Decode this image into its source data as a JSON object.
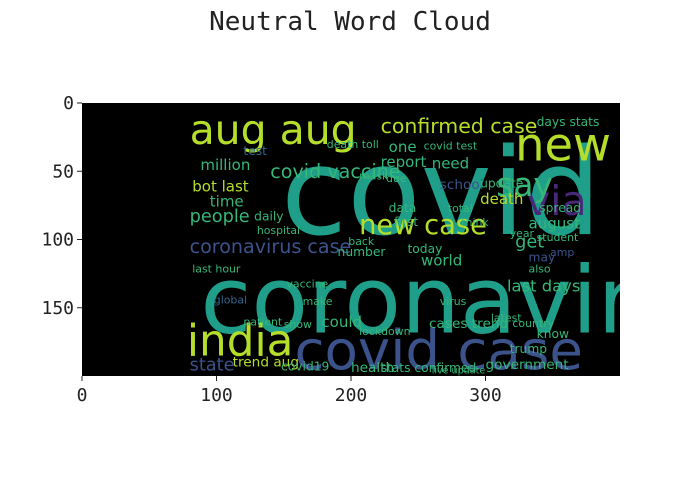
{
  "chart_data": {
    "type": "word_cloud",
    "title": "Neutral Word Cloud",
    "xlabel": "",
    "ylabel": "",
    "xlim": [
      0,
      400
    ],
    "ylim": [
      200,
      0
    ],
    "xticks": [
      0,
      100,
      200,
      300
    ],
    "yticks": [
      0,
      50,
      100,
      150
    ],
    "background": "#000000",
    "colors": {
      "teal": "#1f9e89",
      "green": "#35b779",
      "lime": "#b5de2b",
      "blue": "#3b528b",
      "purple": "#482878",
      "slate": "#31688e"
    },
    "words": [
      {
        "text": "covid",
        "x": 148,
        "y": 96,
        "size": 88,
        "color": "teal"
      },
      {
        "text": "coronaviru",
        "x": 88,
        "y": 168,
        "size": 68,
        "color": "teal"
      },
      {
        "text": "covid case",
        "x": 158,
        "y": 195,
        "size": 40,
        "color": "blue"
      },
      {
        "text": "india",
        "x": 78,
        "y": 185,
        "size": 32,
        "color": "lime"
      },
      {
        "text": "aug aug",
        "x": 80,
        "y": 30,
        "size": 30,
        "color": "lime"
      },
      {
        "text": "new",
        "x": 322,
        "y": 42,
        "size": 34,
        "color": "lime"
      },
      {
        "text": "via",
        "x": 330,
        "y": 82,
        "size": 30,
        "color": "purple"
      },
      {
        "text": "say",
        "x": 308,
        "y": 68,
        "size": 24,
        "color": "green"
      },
      {
        "text": "new case",
        "x": 206,
        "y": 96,
        "size": 20,
        "color": "lime"
      },
      {
        "text": "confirmed case",
        "x": 222,
        "y": 22,
        "size": 15,
        "color": "lime"
      },
      {
        "text": "covid vaccine",
        "x": 140,
        "y": 55,
        "size": 14,
        "color": "green"
      },
      {
        "text": "coronavirus case",
        "x": 80,
        "y": 110,
        "size": 14,
        "color": "blue"
      },
      {
        "text": "people",
        "x": 80,
        "y": 87,
        "size": 13,
        "color": "green"
      },
      {
        "text": "million",
        "x": 88,
        "y": 49,
        "size": 11,
        "color": "green"
      },
      {
        "text": "bot last",
        "x": 82,
        "y": 65,
        "size": 11,
        "color": "lime"
      },
      {
        "text": "time",
        "x": 95,
        "y": 76,
        "size": 11,
        "color": "green"
      },
      {
        "text": "report",
        "x": 222,
        "y": 47,
        "size": 11,
        "color": "green"
      },
      {
        "text": "one",
        "x": 228,
        "y": 36,
        "size": 11,
        "color": "green"
      },
      {
        "text": "need",
        "x": 260,
        "y": 48,
        "size": 11,
        "color": "green"
      },
      {
        "text": "school",
        "x": 266,
        "y": 63,
        "size": 10,
        "color": "blue"
      },
      {
        "text": "death",
        "x": 296,
        "y": 74,
        "size": 11,
        "color": "lime"
      },
      {
        "text": "update",
        "x": 296,
        "y": 62,
        "size": 9,
        "color": "green"
      },
      {
        "text": "days stats",
        "x": 338,
        "y": 17,
        "size": 9,
        "color": "green"
      },
      {
        "text": "covid test",
        "x": 254,
        "y": 34,
        "size": 8,
        "color": "green"
      },
      {
        "text": "death toll",
        "x": 182,
        "y": 33,
        "size": 8,
        "color": "green"
      },
      {
        "text": "due",
        "x": 226,
        "y": 58,
        "size": 8,
        "color": "green"
      },
      {
        "text": "mask",
        "x": 206,
        "y": 56,
        "size": 8,
        "color": "green"
      },
      {
        "text": "data",
        "x": 228,
        "y": 80,
        "size": 9,
        "color": "green"
      },
      {
        "text": "total",
        "x": 272,
        "y": 80,
        "size": 8,
        "color": "green"
      },
      {
        "text": "first",
        "x": 232,
        "y": 90,
        "size": 9,
        "color": "green"
      },
      {
        "text": "think",
        "x": 282,
        "y": 90,
        "size": 8,
        "color": "green"
      },
      {
        "text": "get",
        "x": 322,
        "y": 106,
        "size": 13,
        "color": "green"
      },
      {
        "text": "august",
        "x": 332,
        "y": 92,
        "size": 11,
        "color": "green"
      },
      {
        "text": "student",
        "x": 338,
        "y": 101,
        "size": 8,
        "color": "green"
      },
      {
        "text": "spread",
        "x": 340,
        "y": 80,
        "size": 9,
        "color": "green"
      },
      {
        "text": "year",
        "x": 318,
        "y": 98,
        "size": 8,
        "color": "green"
      },
      {
        "text": "amp",
        "x": 348,
        "y": 112,
        "size": 8,
        "color": "blue"
      },
      {
        "text": "last days",
        "x": 316,
        "y": 138,
        "size": 12,
        "color": "green"
      },
      {
        "text": "may",
        "x": 332,
        "y": 116,
        "size": 9,
        "color": "blue"
      },
      {
        "text": "also",
        "x": 332,
        "y": 124,
        "size": 8,
        "color": "green"
      },
      {
        "text": "world",
        "x": 252,
        "y": 119,
        "size": 11,
        "color": "green"
      },
      {
        "text": "today",
        "x": 242,
        "y": 110,
        "size": 9,
        "color": "green"
      },
      {
        "text": "number",
        "x": 190,
        "y": 112,
        "size": 9,
        "color": "green"
      },
      {
        "text": "daily",
        "x": 128,
        "y": 86,
        "size": 9,
        "color": "green"
      },
      {
        "text": "hospital",
        "x": 130,
        "y": 96,
        "size": 8,
        "color": "green"
      },
      {
        "text": "back",
        "x": 198,
        "y": 104,
        "size": 8,
        "color": "green"
      },
      {
        "text": "last hour",
        "x": 82,
        "y": 124,
        "size": 8,
        "color": "green"
      },
      {
        "text": "make",
        "x": 164,
        "y": 148,
        "size": 8,
        "color": "green"
      },
      {
        "text": "could",
        "x": 178,
        "y": 164,
        "size": 11,
        "color": "green"
      },
      {
        "text": "lockdown",
        "x": 206,
        "y": 170,
        "size": 8,
        "color": "green"
      },
      {
        "text": "virus",
        "x": 266,
        "y": 148,
        "size": 8,
        "color": "green"
      },
      {
        "text": "cases trend",
        "x": 258,
        "y": 165,
        "size": 10,
        "color": "green"
      },
      {
        "text": "latest",
        "x": 304,
        "y": 160,
        "size": 8,
        "color": "green"
      },
      {
        "text": "country",
        "x": 320,
        "y": 164,
        "size": 8,
        "color": "green"
      },
      {
        "text": "know",
        "x": 338,
        "y": 172,
        "size": 9,
        "color": "green"
      },
      {
        "text": "trump",
        "x": 318,
        "y": 183,
        "size": 9,
        "color": "green"
      },
      {
        "text": "government",
        "x": 300,
        "y": 195,
        "size": 10,
        "color": "green"
      },
      {
        "text": "state",
        "x": 80,
        "y": 196,
        "size": 13,
        "color": "blue"
      },
      {
        "text": "trend aug",
        "x": 112,
        "y": 193,
        "size": 10,
        "color": "lime"
      },
      {
        "text": "covid19",
        "x": 148,
        "y": 196,
        "size": 9,
        "color": "green"
      },
      {
        "text": "health",
        "x": 200,
        "y": 197,
        "size": 10,
        "color": "green"
      },
      {
        "text": "stats confirmed",
        "x": 222,
        "y": 197,
        "size": 9,
        "color": "green"
      },
      {
        "text": "live update",
        "x": 260,
        "y": 198,
        "size": 7,
        "color": "green"
      },
      {
        "text": "patient",
        "x": 120,
        "y": 163,
        "size": 8,
        "color": "green"
      },
      {
        "text": "test",
        "x": 120,
        "y": 38,
        "size": 9,
        "color": "slate"
      },
      {
        "text": "vaccine",
        "x": 152,
        "y": 135,
        "size": 8,
        "color": "green"
      },
      {
        "text": "global",
        "x": 98,
        "y": 147,
        "size": 8,
        "color": "slate"
      },
      {
        "text": "show",
        "x": 150,
        "y": 165,
        "size": 8,
        "color": "green"
      }
    ]
  }
}
